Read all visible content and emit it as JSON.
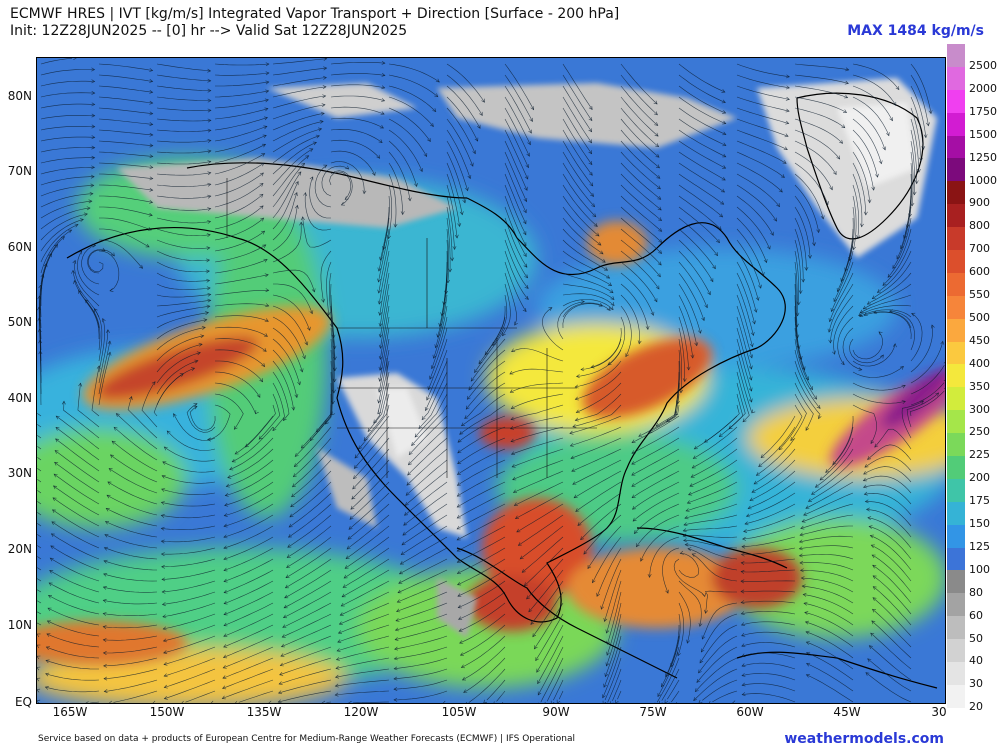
{
  "header": {
    "title_line1": "ECMWF HRES | IVT [kg/m/s] Integrated Vapor Transport + Direction [Surface - 200 hPa]",
    "title_line2": "Init: 12Z28JUN2025 -- [0] hr --> Valid Sat 12Z28JUN2025",
    "max_label": "MAX 1484 kg/m/s"
  },
  "axes": {
    "lat_labels": [
      "80N",
      "70N",
      "60N",
      "50N",
      "40N",
      "30N",
      "20N",
      "10N",
      "EQ"
    ],
    "lon_labels": [
      "165W",
      "150W",
      "135W",
      "120W",
      "105W",
      "90W",
      "75W",
      "60W",
      "45W",
      "30"
    ]
  },
  "colorbar": {
    "labels": [
      "2500",
      "2000",
      "1750",
      "1500",
      "1250",
      "1000",
      "900",
      "800",
      "700",
      "600",
      "550",
      "500",
      "450",
      "400",
      "350",
      "300",
      "250",
      "225",
      "200",
      "175",
      "150",
      "125",
      "100",
      "80",
      "60",
      "50",
      "40",
      "30",
      "20"
    ],
    "colors": [
      "#c88ccb",
      "#e069e0",
      "#f03ff0",
      "#d21cd2",
      "#a50ea5",
      "#7c0a7c",
      "#8a1414",
      "#a82020",
      "#c83a2a",
      "#dc4f2c",
      "#ec6a32",
      "#f6853a",
      "#fba83e",
      "#fbc93f",
      "#f4e83c",
      "#d2ec3c",
      "#a5e64a",
      "#7bd95a",
      "#52cc78",
      "#3fc5a8",
      "#35b3d6",
      "#3295e6",
      "#3c74d8",
      "#8a8a8a",
      "#a3a3a3",
      "#bdbdbd",
      "#d2d2d2",
      "#e4e4e4",
      "#f2f2f2"
    ]
  },
  "footer": {
    "credit": "Service based on data + products of European Centre for Medium-Range Weather Forecasts (ECMWF) | IFS Operational",
    "brand": "weathermodels.com"
  }
}
